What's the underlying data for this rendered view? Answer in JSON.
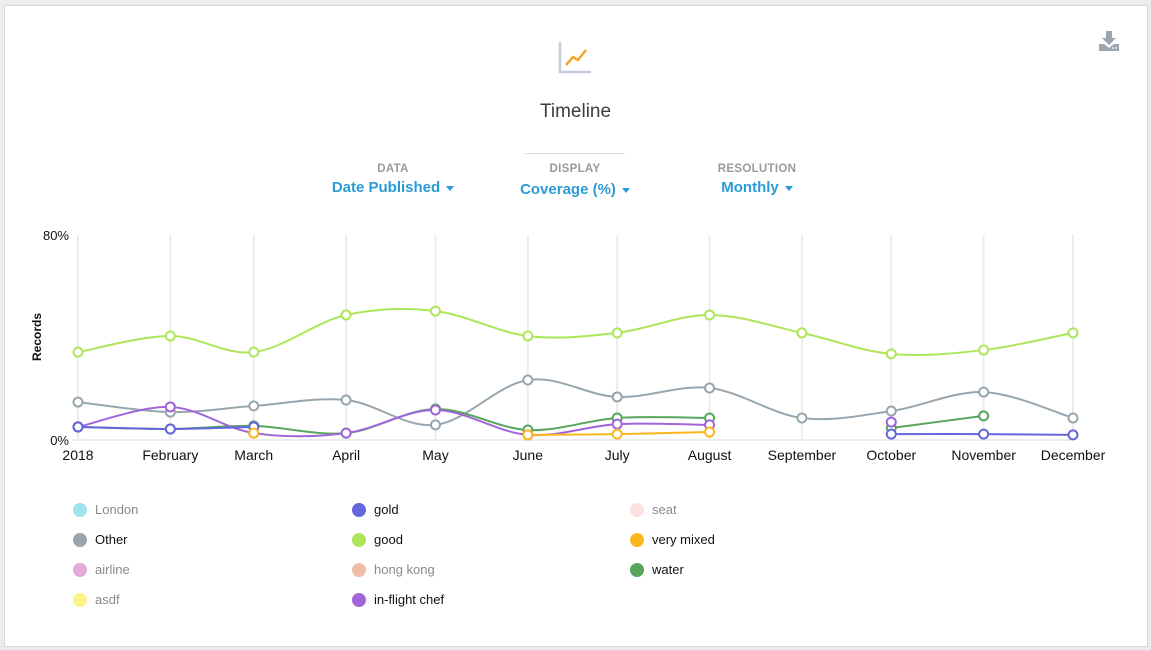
{
  "header": {
    "title": "Timeline",
    "chart_icon": "line-chart-icon",
    "download_icon": "download-icon"
  },
  "controls": [
    {
      "label": "DATA",
      "value": "Date Published"
    },
    {
      "label": "DISPLAY",
      "value": "Coverage (%)"
    },
    {
      "label": "RESOLUTION",
      "value": "Monthly"
    }
  ],
  "chart_data": {
    "type": "line",
    "title": "Timeline",
    "xlabel": "",
    "ylabel": "Records",
    "ylim": [
      0,
      80
    ],
    "y_ticks": [
      "0%",
      "80%"
    ],
    "categories": [
      "2018",
      "February",
      "March",
      "April",
      "May",
      "June",
      "July",
      "August",
      "September",
      "October",
      "November",
      "December"
    ],
    "grid": "vertical",
    "series": [
      {
        "name": "good",
        "color": "#aee65a",
        "values": [
          34.3,
          40.6,
          34.3,
          48.8,
          50.3,
          40.6,
          41.8,
          48.8,
          41.8,
          33.6,
          35.1,
          41.8
        ]
      },
      {
        "name": "Other",
        "color": "#97a6ae",
        "values": [
          14.8,
          10.9,
          13.3,
          15.6,
          5.9,
          23.4,
          16.8,
          20.3,
          8.6,
          11.3,
          18.7,
          8.6
        ]
      },
      {
        "name": "water",
        "color": "#58a55c",
        "values": [
          5.1,
          4.3,
          5.5,
          2.7,
          12.1,
          3.9,
          8.6,
          8.6,
          null,
          4.7,
          9.4,
          null
        ]
      },
      {
        "name": "in-flight chef",
        "color": "#a066d9",
        "values": [
          5.1,
          12.9,
          2.7,
          2.7,
          11.7,
          2.0,
          6.2,
          5.9,
          null,
          7.0,
          null,
          null
        ]
      },
      {
        "name": "gold",
        "color": "#6466dc",
        "values": [
          5.1,
          4.3,
          5.1,
          null,
          null,
          null,
          null,
          null,
          null,
          2.3,
          2.3,
          2.0
        ]
      },
      {
        "name": "very mixed",
        "color": "#fbb81e",
        "values": [
          null,
          null,
          2.7,
          null,
          null,
          2.0,
          2.3,
          3.1,
          null,
          null,
          null,
          null
        ]
      }
    ]
  },
  "legend": [
    {
      "name": "London",
      "color": "#9fe3ee",
      "active": false
    },
    {
      "name": "Other",
      "color": "#97a6ae",
      "active": true
    },
    {
      "name": "airline",
      "color": "#e3a9d9",
      "active": false
    },
    {
      "name": "asdf",
      "color": "#fbf58a",
      "active": false
    },
    {
      "name": "gold",
      "color": "#6466dc",
      "active": true
    },
    {
      "name": "good",
      "color": "#aee65a",
      "active": true
    },
    {
      "name": "hong kong",
      "color": "#f0bea6",
      "active": false
    },
    {
      "name": "in-flight chef",
      "color": "#a066d9",
      "active": true
    },
    {
      "name": "seat",
      "color": "#fde0e0",
      "active": false
    },
    {
      "name": "very mixed",
      "color": "#fbb81e",
      "active": true
    },
    {
      "name": "water",
      "color": "#58a55c",
      "active": true
    }
  ]
}
